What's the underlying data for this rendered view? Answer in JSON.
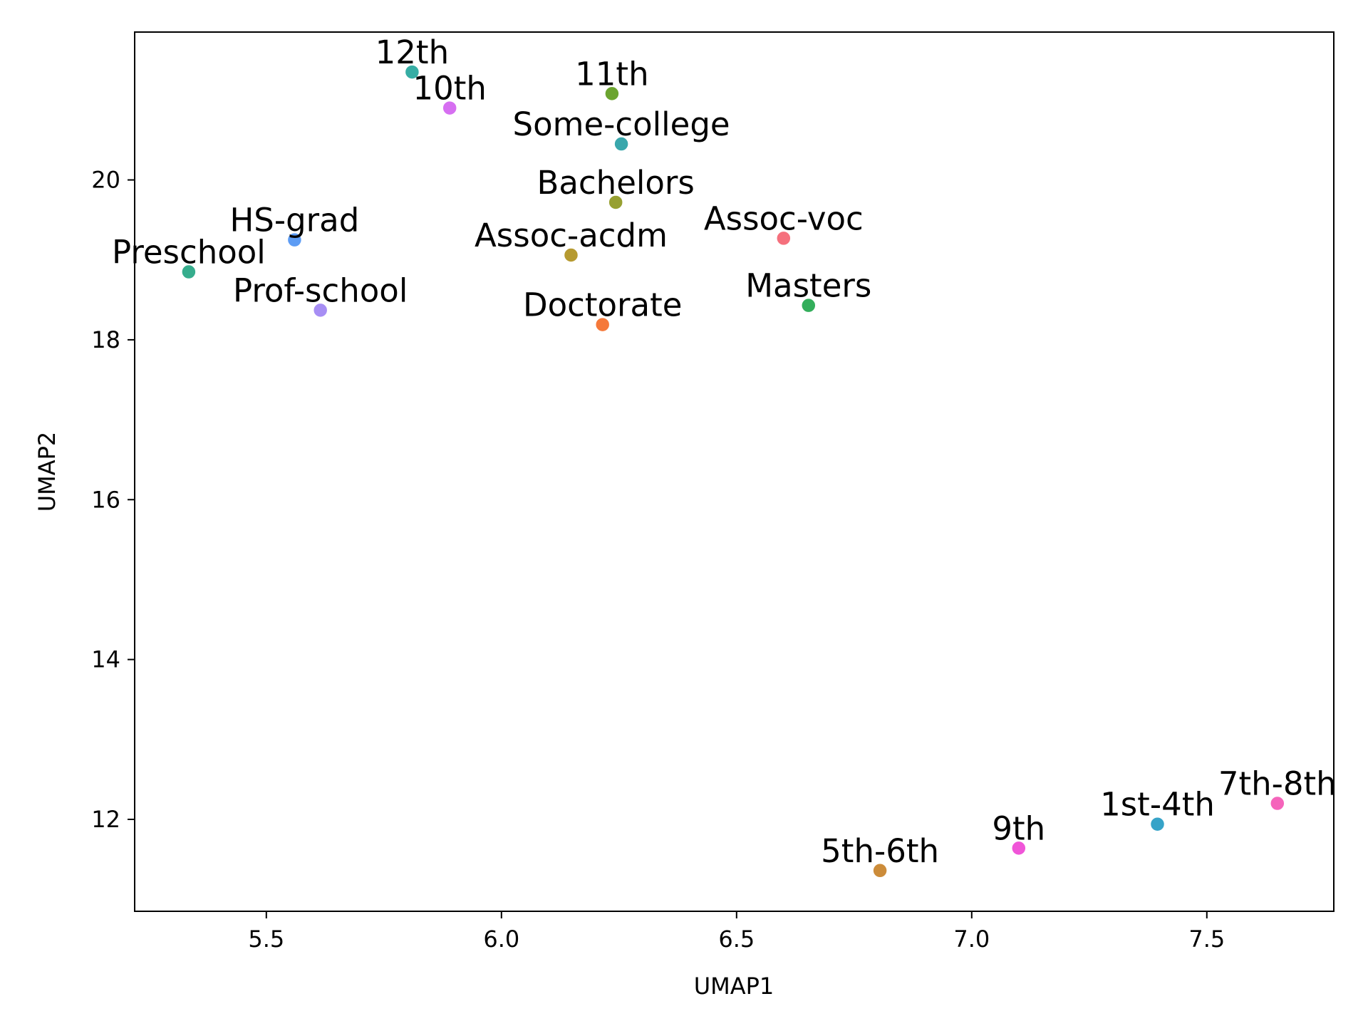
{
  "chart_data": {
    "type": "scatter",
    "title": "",
    "xlabel": "UMAP1",
    "ylabel": "UMAP2",
    "xlim": [
      5.22,
      7.77
    ],
    "ylim": [
      10.85,
      21.85
    ],
    "xticks": [
      5.5,
      6.0,
      6.5,
      7.0,
      7.5
    ],
    "yticks": [
      12,
      14,
      16,
      18,
      20
    ],
    "grid": false,
    "points": [
      {
        "label": "12th",
        "x": 5.81,
        "y": 21.35,
        "color": "#36ada4"
      },
      {
        "label": "10th",
        "x": 5.89,
        "y": 20.9,
        "color": "#d66ff1"
      },
      {
        "label": "11th",
        "x": 6.235,
        "y": 21.08,
        "color": "#6ba42f"
      },
      {
        "label": "Some-college",
        "x": 6.255,
        "y": 20.45,
        "color": "#39a7ac"
      },
      {
        "label": "Bachelors",
        "x": 6.243,
        "y": 19.72,
        "color": "#97a031"
      },
      {
        "label": "HS-grad",
        "x": 5.56,
        "y": 19.25,
        "color": "#5d9cf4"
      },
      {
        "label": "Assoc-voc",
        "x": 6.6,
        "y": 19.27,
        "color": "#f5707d"
      },
      {
        "label": "Preschool",
        "x": 5.335,
        "y": 18.85,
        "color": "#36ad8d"
      },
      {
        "label": "Assoc-acdm",
        "x": 6.148,
        "y": 19.06,
        "color": "#b69a30"
      },
      {
        "label": "Prof-school",
        "x": 5.615,
        "y": 18.37,
        "color": "#a78ef4"
      },
      {
        "label": "Masters",
        "x": 6.653,
        "y": 18.43,
        "color": "#33ae5b"
      },
      {
        "label": "Doctorate",
        "x": 6.215,
        "y": 18.19,
        "color": "#f5793a"
      },
      {
        "label": "7th-8th",
        "x": 7.65,
        "y": 12.2,
        "color": "#f564bb"
      },
      {
        "label": "1st-4th",
        "x": 7.395,
        "y": 11.94,
        "color": "#36a3c8"
      },
      {
        "label": "9th",
        "x": 7.1,
        "y": 11.64,
        "color": "#f055d8"
      },
      {
        "label": "5th-6th",
        "x": 6.805,
        "y": 11.36,
        "color": "#cc8c3a"
      }
    ]
  }
}
